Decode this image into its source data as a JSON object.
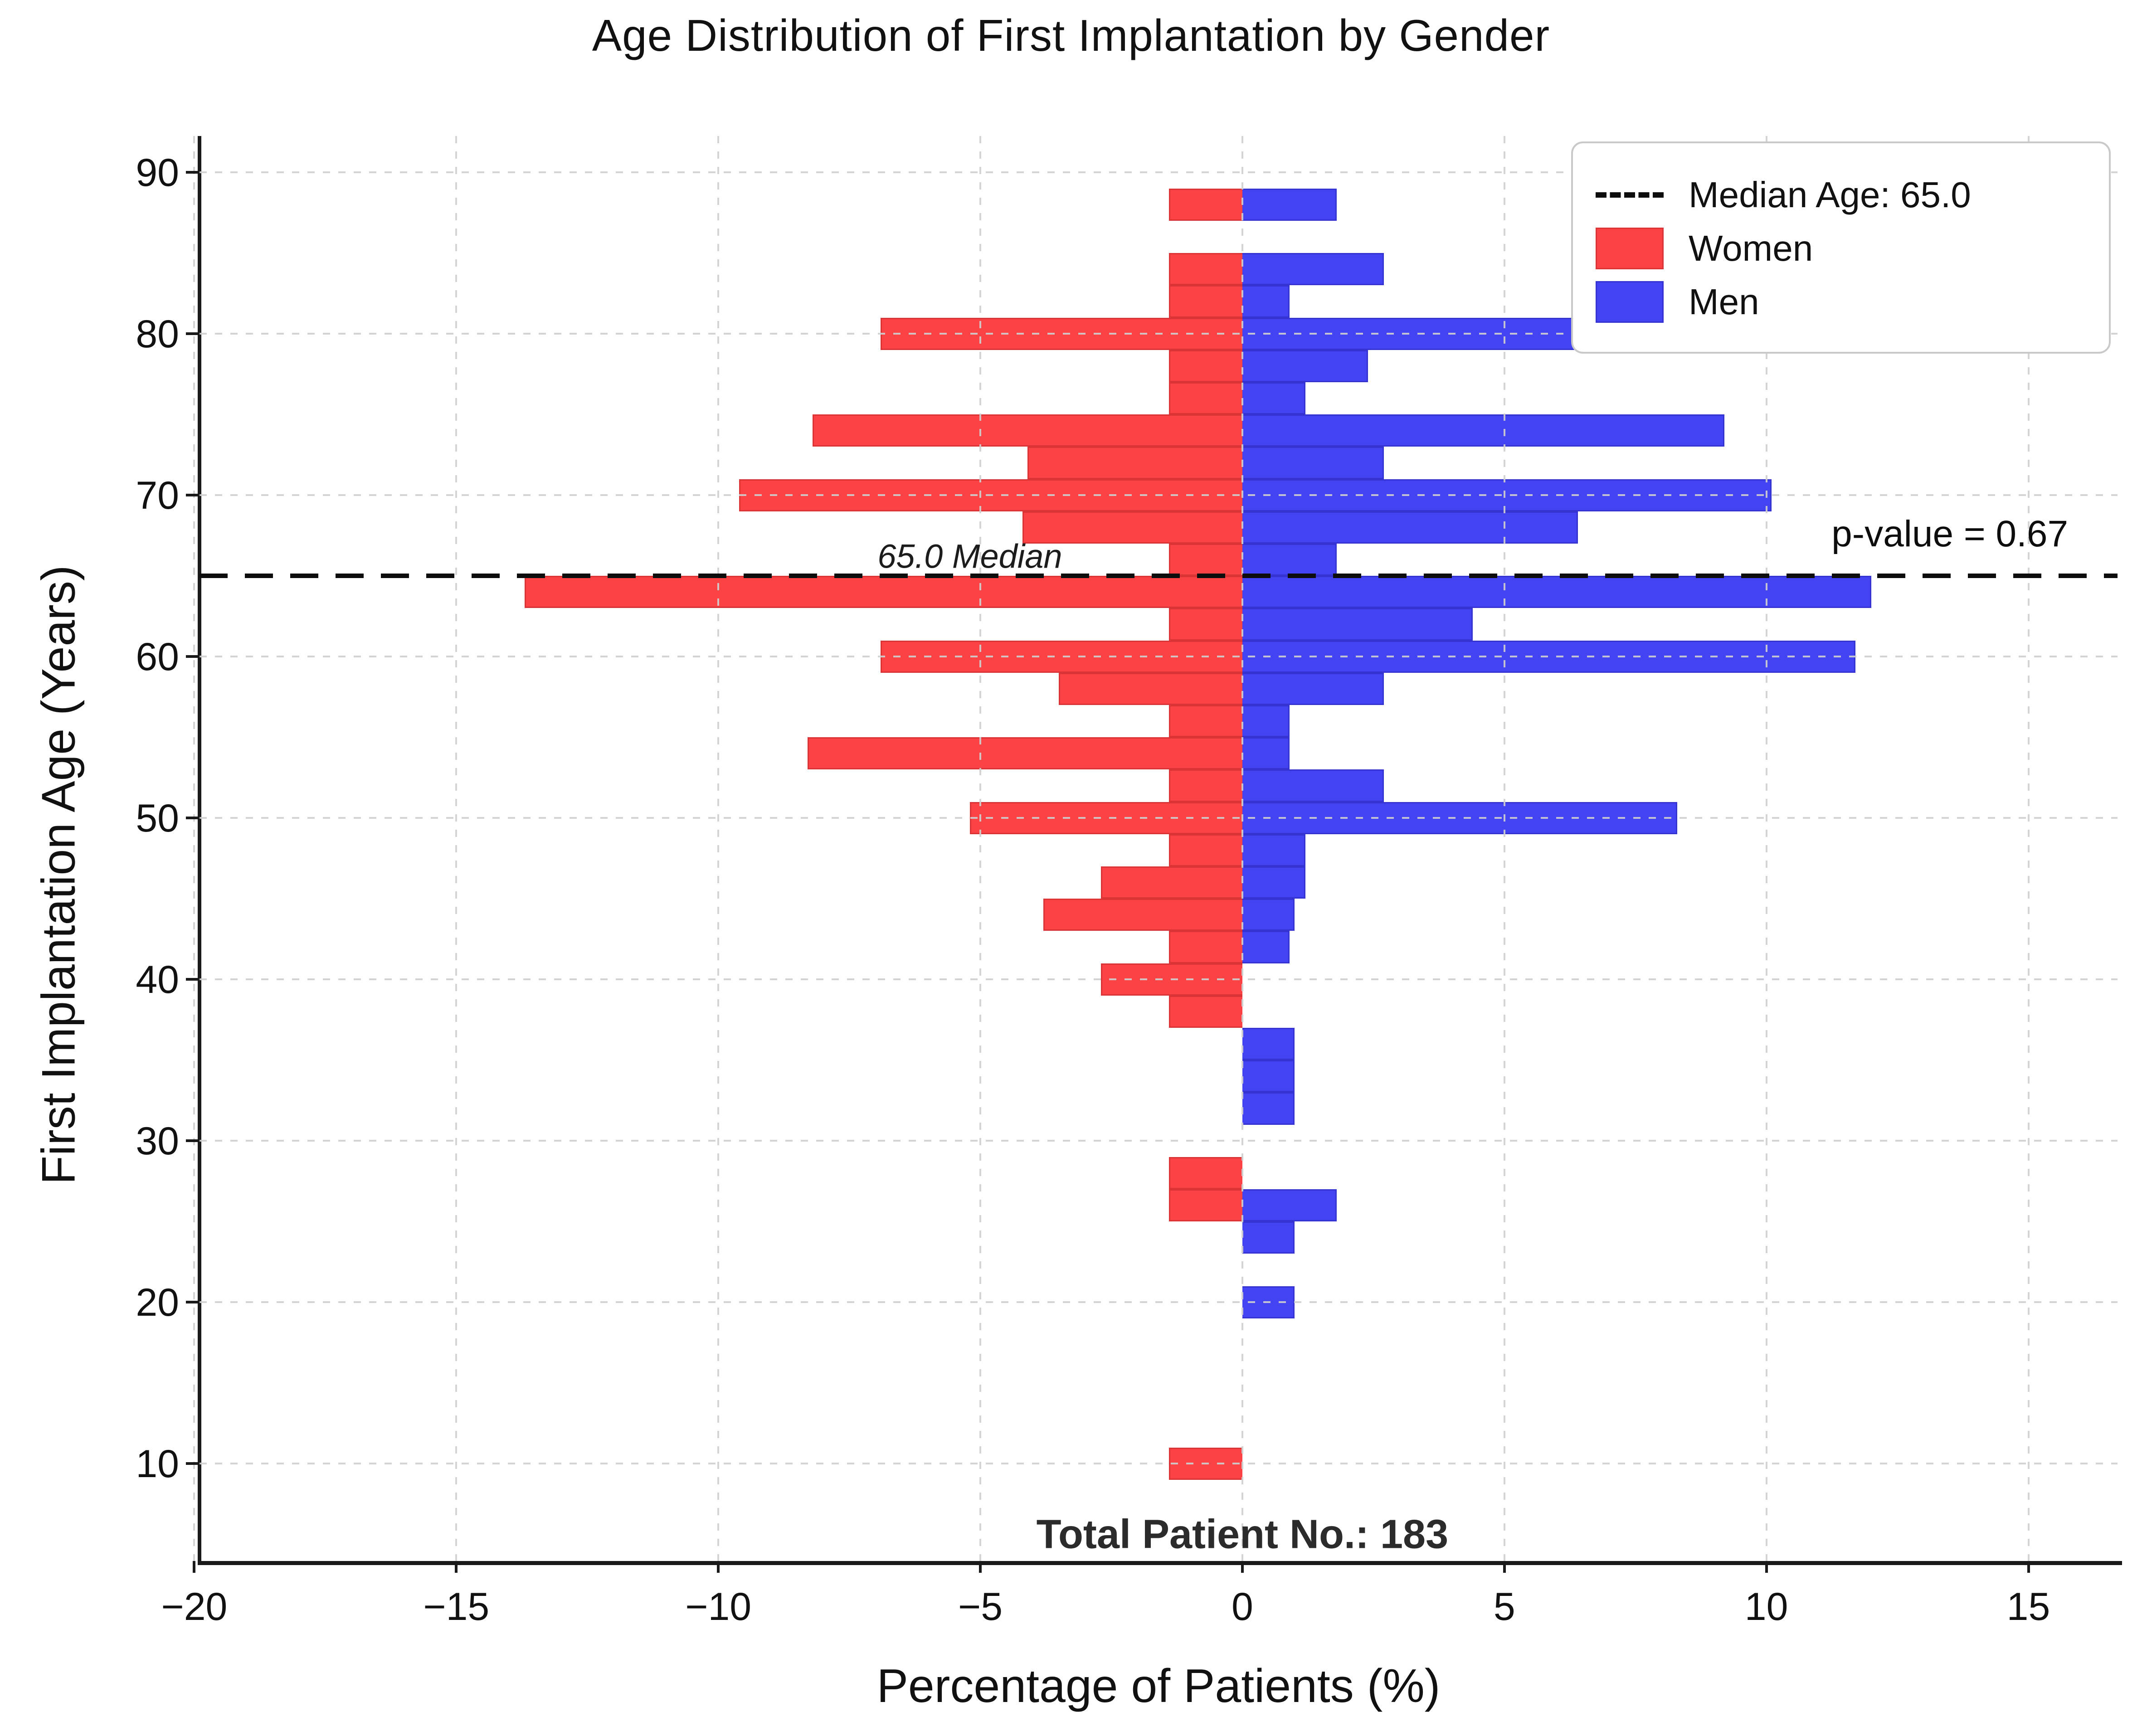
{
  "title": "Age Distribution of First Implantation by Gender",
  "axes": {
    "x_label": "Percentage of Patients (%)",
    "y_label": "First Implantation Age (Years)",
    "x_ticks": [
      -20,
      -15,
      -10,
      -5,
      0,
      5,
      10,
      15
    ],
    "x_tick_labels": [
      "−20",
      "−15",
      "−10",
      "−5",
      "0",
      "5",
      "10",
      "15"
    ],
    "y_ticks": [
      10,
      20,
      30,
      40,
      50,
      60,
      70,
      80,
      90
    ],
    "xlim": [
      -19.9,
      16.7
    ],
    "ylim": [
      3.97,
      92.25
    ],
    "grid": "dashed"
  },
  "legend": {
    "median_label": "Median Age: 65.0",
    "women_label": "Women",
    "men_label": "Men",
    "position": "upper right"
  },
  "annotations": {
    "median_text": "65.0 Median",
    "p_value_text": "p-value = 0.67",
    "total_text": "Total Patient No.: 183"
  },
  "colors": {
    "women": "#fb4345",
    "men": "#4443f2",
    "median_line": "#0d0d0d",
    "grid": "#cfcfcf",
    "spine": "#1a1a1a"
  },
  "chart_data": {
    "type": "bar",
    "orientation": "horizontal",
    "title": "Age Distribution of First Implantation by Gender",
    "xlabel": "Percentage of Patients (%)",
    "ylabel": "First Implantation Age (Years)",
    "xlim": [
      -19.9,
      16.7
    ],
    "ylim": [
      3.97,
      92.25
    ],
    "bin_width_years": 2,
    "median_age": 65.0,
    "p_value": 0.67,
    "total_patients": 183,
    "legend_position": "upper right",
    "series": [
      {
        "name": "Women",
        "side": "left",
        "color": "#fb4345",
        "bars": [
          {
            "age": 88,
            "pct": 1.4
          },
          {
            "age": 84,
            "pct": 1.4
          },
          {
            "age": 82,
            "pct": 1.4
          },
          {
            "age": 80,
            "pct": 6.9
          },
          {
            "age": 78,
            "pct": 1.4
          },
          {
            "age": 76,
            "pct": 1.4
          },
          {
            "age": 74,
            "pct": 8.2
          },
          {
            "age": 72,
            "pct": 4.1
          },
          {
            "age": 70,
            "pct": 9.6
          },
          {
            "age": 68,
            "pct": 4.2
          },
          {
            "age": 66,
            "pct": 1.4
          },
          {
            "age": 64,
            "pct": 13.7
          },
          {
            "age": 62,
            "pct": 1.4
          },
          {
            "age": 60,
            "pct": 6.9
          },
          {
            "age": 58,
            "pct": 3.5
          },
          {
            "age": 56,
            "pct": 1.4
          },
          {
            "age": 54,
            "pct": 8.3
          },
          {
            "age": 52,
            "pct": 1.4
          },
          {
            "age": 50,
            "pct": 5.2
          },
          {
            "age": 48,
            "pct": 1.4
          },
          {
            "age": 46,
            "pct": 2.7
          },
          {
            "age": 44,
            "pct": 3.8
          },
          {
            "age": 42,
            "pct": 1.4
          },
          {
            "age": 40,
            "pct": 2.7
          },
          {
            "age": 38,
            "pct": 1.4
          },
          {
            "age": 28,
            "pct": 1.4
          },
          {
            "age": 26,
            "pct": 1.4
          },
          {
            "age": 10,
            "pct": 1.4
          }
        ]
      },
      {
        "name": "Men",
        "side": "right",
        "color": "#4443f2",
        "bars": [
          {
            "age": 88,
            "pct": 1.8
          },
          {
            "age": 84,
            "pct": 2.7
          },
          {
            "age": 82,
            "pct": 0.9
          },
          {
            "age": 80,
            "pct": 7.3
          },
          {
            "age": 78,
            "pct": 2.4
          },
          {
            "age": 76,
            "pct": 1.2
          },
          {
            "age": 74,
            "pct": 9.2
          },
          {
            "age": 72,
            "pct": 2.7
          },
          {
            "age": 70,
            "pct": 10.1
          },
          {
            "age": 68,
            "pct": 6.4
          },
          {
            "age": 66,
            "pct": 1.8
          },
          {
            "age": 64,
            "pct": 12.0
          },
          {
            "age": 62,
            "pct": 4.4
          },
          {
            "age": 60,
            "pct": 11.7
          },
          {
            "age": 58,
            "pct": 2.7
          },
          {
            "age": 56,
            "pct": 0.9
          },
          {
            "age": 54,
            "pct": 0.9
          },
          {
            "age": 52,
            "pct": 2.7
          },
          {
            "age": 50,
            "pct": 8.3
          },
          {
            "age": 48,
            "pct": 1.2
          },
          {
            "age": 46,
            "pct": 1.2
          },
          {
            "age": 44,
            "pct": 1.0
          },
          {
            "age": 42,
            "pct": 0.9
          },
          {
            "age": 36,
            "pct": 1.0
          },
          {
            "age": 34,
            "pct": 1.0
          },
          {
            "age": 32,
            "pct": 1.0
          },
          {
            "age": 26,
            "pct": 1.8
          },
          {
            "age": 24,
            "pct": 1.0
          },
          {
            "age": 20,
            "pct": 1.0
          }
        ]
      }
    ],
    "annotations": [
      {
        "text": "65.0 Median",
        "x": -5.2,
        "age": 66.2,
        "style": "italic"
      },
      {
        "text": "p-value = 0.67",
        "x": 13.5,
        "age": 67.6,
        "style": "normal"
      },
      {
        "text": "Total Patient No.: 183",
        "x": 0.0,
        "age": 5.6,
        "style": "bold"
      }
    ]
  }
}
